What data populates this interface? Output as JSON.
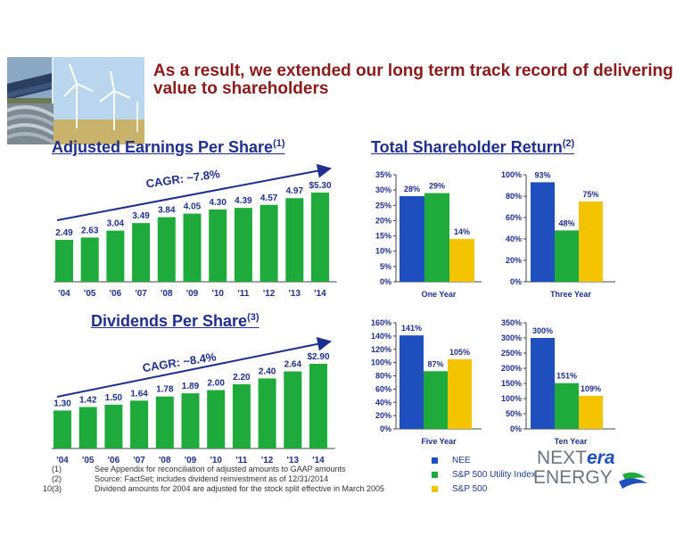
{
  "title": "As a result, we extended our long term track record of delivering value to shareholders",
  "eps": {
    "heading": "Adjusted Earnings Per Share",
    "heading_sup": "(1)",
    "cagr": "CAGR: ~7.8%"
  },
  "dividends": {
    "heading": "Dividends Per Share",
    "heading_sup": "(3)",
    "cagr": "CAGR: ~8.4%"
  },
  "tsr": {
    "heading": "Total Shareholder Return",
    "heading_sup": "(2)"
  },
  "legend": [
    {
      "label": "NEE",
      "color": "#1f4fbf"
    },
    {
      "label": "S&P 500 Utility Index",
      "color": "#1faa3c"
    },
    {
      "label": "S&P 500",
      "color": "#f5c400"
    }
  ],
  "footnotes": [
    {
      "num": "(1)",
      "text": "See Appendix for reconciliation of adjusted amounts to GAAP amounts"
    },
    {
      "num": "(2)",
      "text": "Source: FactSet; includes dividend reinvestment as of 12/31/2014"
    },
    {
      "num": "(3)",
      "text": "Dividend amounts for 2004 are adjusted for the stock split effective in March 2005"
    }
  ],
  "page_number": "10",
  "logo": {
    "text_next": "NEXT",
    "text_era": "era",
    "text_energy": "ENERGY"
  },
  "colors": {
    "bar_green": "#1faa3c",
    "nee_blue": "#1f4fbf",
    "util_green": "#1faa3c",
    "sp500_yellow": "#f5c400",
    "title_red": "#8b1a1a",
    "heading_blue": "#1f2f8f"
  },
  "chart_data": [
    {
      "id": "eps",
      "type": "bar",
      "categories": [
        "'04",
        "'05",
        "'06",
        "'07",
        "'08",
        "'09",
        "'10",
        "'11",
        "'12",
        "'13",
        "'14"
      ],
      "values": [
        2.49,
        2.63,
        3.04,
        3.49,
        3.84,
        4.05,
        4.3,
        4.39,
        4.57,
        4.97,
        5.3
      ],
      "data_labels": [
        "2.49",
        "2.63",
        "3.04",
        "3.49",
        "3.84",
        "4.05",
        "4.30",
        "4.39",
        "4.57",
        "4.97",
        "$5.30"
      ],
      "ylim": [
        0,
        5.3
      ]
    },
    {
      "id": "div",
      "type": "bar",
      "categories": [
        "'04",
        "'05",
        "'06",
        "'07",
        "'08",
        "'09",
        "'10",
        "'11",
        "'12",
        "'13",
        "'14"
      ],
      "values": [
        1.3,
        1.42,
        1.5,
        1.64,
        1.78,
        1.89,
        2.0,
        2.2,
        2.4,
        2.64,
        2.9
      ],
      "data_labels": [
        "1.30",
        "1.42",
        "1.50",
        "1.64",
        "1.78",
        "1.89",
        "2.00",
        "2.20",
        "2.40",
        "2.64",
        "$2.90"
      ],
      "ylim": [
        0,
        2.9
      ]
    },
    {
      "id": "tsr1",
      "type": "bar",
      "categories": [
        "One Year"
      ],
      "series": [
        {
          "name": "NEE",
          "values": [
            28
          ]
        },
        {
          "name": "S&P 500 Utility Index",
          "values": [
            29
          ]
        },
        {
          "name": "S&P 500",
          "values": [
            14
          ]
        }
      ],
      "data_labels": [
        "28%",
        "29%",
        "14%"
      ],
      "yticks": [
        "0%",
        "5%",
        "10%",
        "15%",
        "20%",
        "25%",
        "30%",
        "35%"
      ],
      "ylim": [
        0,
        35
      ]
    },
    {
      "id": "tsr3",
      "type": "bar",
      "categories": [
        "Three Year"
      ],
      "series": [
        {
          "name": "NEE",
          "values": [
            93
          ]
        },
        {
          "name": "S&P 500 Utility Index",
          "values": [
            48
          ]
        },
        {
          "name": "S&P 500",
          "values": [
            75
          ]
        }
      ],
      "data_labels": [
        "93%",
        "48%",
        "75%"
      ],
      "yticks": [
        "0%",
        "20%",
        "40%",
        "60%",
        "80%",
        "100%"
      ],
      "ylim": [
        0,
        100
      ]
    },
    {
      "id": "tsr5",
      "type": "bar",
      "categories": [
        "Five Year"
      ],
      "series": [
        {
          "name": "NEE",
          "values": [
            141
          ]
        },
        {
          "name": "S&P 500 Utility Index",
          "values": [
            87
          ]
        },
        {
          "name": "S&P 500",
          "values": [
            105
          ]
        }
      ],
      "data_labels": [
        "141%",
        "87%",
        "105%"
      ],
      "yticks": [
        "0%",
        "20%",
        "40%",
        "60%",
        "80%",
        "100%",
        "120%",
        "140%",
        "160%"
      ],
      "ylim": [
        0,
        160
      ]
    },
    {
      "id": "tsr10",
      "type": "bar",
      "categories": [
        "Ten Year"
      ],
      "series": [
        {
          "name": "NEE",
          "values": [
            300
          ]
        },
        {
          "name": "S&P 500 Utility Index",
          "values": [
            151
          ]
        },
        {
          "name": "S&P 500",
          "values": [
            109
          ]
        }
      ],
      "data_labels": [
        "300%",
        "151%",
        "109%"
      ],
      "yticks": [
        "0%",
        "50%",
        "100%",
        "150%",
        "200%",
        "250%",
        "300%",
        "350%"
      ],
      "ylim": [
        0,
        350
      ]
    }
  ]
}
